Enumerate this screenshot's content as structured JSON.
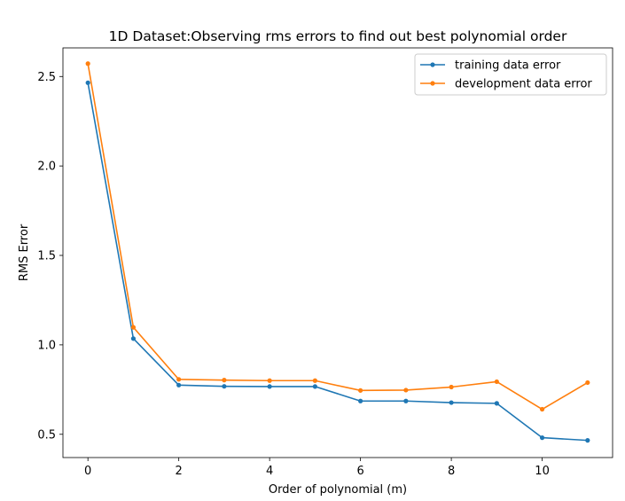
{
  "chart_data": {
    "type": "line",
    "title": "1D Dataset:Observing rms errors to find out best polynomial order",
    "xlabel": "Order of polynomial (m)",
    "ylabel": "RMS Error",
    "xlim": [
      -0.55,
      11.55
    ],
    "ylim": [
      0.37,
      2.66
    ],
    "xticks": [
      0,
      2,
      4,
      6,
      8,
      10
    ],
    "xtick_labels": [
      "0",
      "2",
      "4",
      "6",
      "8",
      "10"
    ],
    "yticks": [
      0.5,
      1.0,
      1.5,
      2.0,
      2.5
    ],
    "ytick_labels": [
      "0.5",
      "1.0",
      "1.5",
      "2.0",
      "2.5"
    ],
    "grid": false,
    "legend_position": "top-right",
    "x": [
      0,
      1,
      2,
      3,
      4,
      5,
      6,
      7,
      8,
      9,
      10,
      11
    ],
    "series": [
      {
        "name": "training data error",
        "color": "#1f77b4",
        "marker": "point",
        "values": [
          2.465,
          1.035,
          0.775,
          0.768,
          0.767,
          0.767,
          0.686,
          0.686,
          0.677,
          0.673,
          0.481,
          0.466
        ]
      },
      {
        "name": "development data error",
        "color": "#ff7f0e",
        "marker": "point",
        "values": [
          2.572,
          1.098,
          0.807,
          0.803,
          0.8,
          0.8,
          0.745,
          0.747,
          0.764,
          0.794,
          0.64,
          0.789
        ]
      }
    ]
  }
}
